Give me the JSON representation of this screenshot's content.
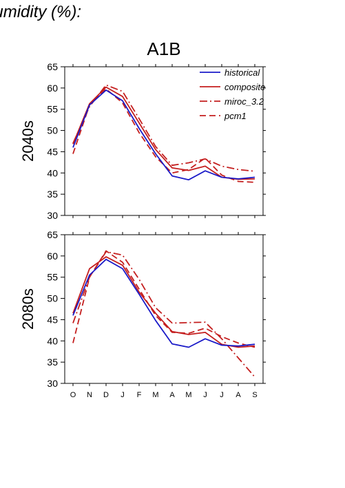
{
  "header_text": "humidity (%):",
  "colors": {
    "historical": "#1a1ac8",
    "model": "#c41e1e"
  },
  "chart_data": [
    {
      "type": "line",
      "title": "A1B",
      "ylabel": "2040s",
      "categories": [
        "O",
        "N",
        "D",
        "J",
        "F",
        "M",
        "A",
        "M",
        "J",
        "J",
        "A",
        "S"
      ],
      "ylim": [
        30,
        65
      ],
      "yticks": [
        30,
        35,
        40,
        45,
        50,
        55,
        60,
        65
      ],
      "legend_position": "top-right",
      "series": [
        {
          "name": "historical",
          "style": "solid",
          "color": "#1a1ac8",
          "values": [
            46.0,
            56.0,
            59.5,
            57.0,
            50.5,
            44.5,
            39.3,
            38.4,
            40.5,
            39.0,
            38.6,
            39.0
          ]
        },
        {
          "name": "composite",
          "style": "solid",
          "color": "#c41e1e",
          "values": [
            46.8,
            56.3,
            60.2,
            58.0,
            51.8,
            45.5,
            41.2,
            40.6,
            41.6,
            39.0,
            38.5,
            38.6
          ]
        },
        {
          "name": "miroc_3.2",
          "style": "dashdot",
          "color": "#c41e1e",
          "values": [
            47.0,
            55.6,
            60.7,
            59.2,
            52.8,
            46.2,
            41.8,
            42.4,
            43.3,
            41.6,
            40.8,
            40.4
          ]
        },
        {
          "name": "pcm1",
          "style": "dashed",
          "color": "#c41e1e",
          "values": [
            44.5,
            56.0,
            59.8,
            56.5,
            49.5,
            43.8,
            40.0,
            40.8,
            43.5,
            39.5,
            38.0,
            37.8
          ]
        }
      ]
    },
    {
      "type": "line",
      "title": "",
      "ylabel": "2080s",
      "categories": [
        "O",
        "N",
        "D",
        "J",
        "F",
        "M",
        "A",
        "M",
        "J",
        "J",
        "A",
        "S"
      ],
      "ylim": [
        30,
        65
      ],
      "yticks": [
        30,
        35,
        40,
        45,
        50,
        55,
        60,
        65
      ],
      "series": [
        {
          "name": "historical",
          "style": "solid",
          "color": "#1a1ac8",
          "values": [
            46.0,
            55.5,
            59.2,
            57.0,
            51.0,
            44.8,
            39.3,
            38.5,
            40.5,
            39.0,
            38.8,
            39.2
          ]
        },
        {
          "name": "composite",
          "style": "solid",
          "color": "#c41e1e",
          "values": [
            46.5,
            57.0,
            59.8,
            57.8,
            51.5,
            46.5,
            42.2,
            41.5,
            42.0,
            39.2,
            38.5,
            38.8
          ]
        },
        {
          "name": "miroc_3.2",
          "style": "dashdot",
          "color": "#c41e1e",
          "values": [
            44.2,
            55.0,
            61.0,
            60.2,
            54.5,
            47.8,
            44.2,
            44.3,
            44.4,
            40.5,
            36.0,
            31.5
          ]
        },
        {
          "name": "pcm1",
          "style": "dashed",
          "color": "#c41e1e",
          "values": [
            39.5,
            55.0,
            61.2,
            58.5,
            52.2,
            46.0,
            42.0,
            41.8,
            43.0,
            41.0,
            39.5,
            38.5
          ]
        }
      ]
    }
  ]
}
